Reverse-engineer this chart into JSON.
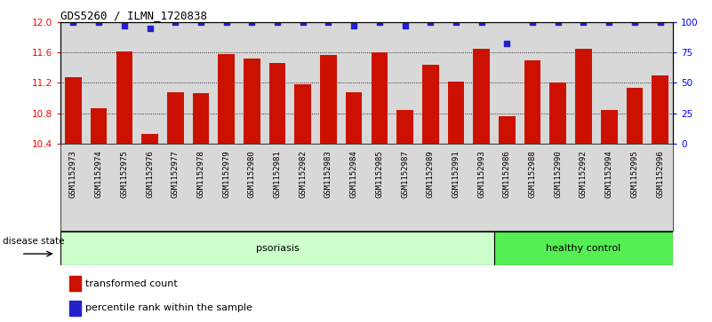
{
  "title": "GDS5260 / ILMN_1720838",
  "samples": [
    "GSM1152973",
    "GSM1152974",
    "GSM1152975",
    "GSM1152976",
    "GSM1152977",
    "GSM1152978",
    "GSM1152979",
    "GSM1152980",
    "GSM1152981",
    "GSM1152982",
    "GSM1152983",
    "GSM1152984",
    "GSM1152985",
    "GSM1152987",
    "GSM1152989",
    "GSM1152991",
    "GSM1152993",
    "GSM1152986",
    "GSM1152988",
    "GSM1152990",
    "GSM1152992",
    "GSM1152994",
    "GSM1152995",
    "GSM1152996"
  ],
  "bar_values": [
    11.28,
    10.86,
    11.62,
    10.52,
    11.08,
    11.06,
    11.58,
    11.52,
    11.47,
    11.18,
    11.57,
    11.08,
    11.61,
    10.84,
    11.44,
    11.22,
    11.65,
    10.76,
    11.5,
    11.2,
    11.65,
    10.84,
    11.14,
    11.3
  ],
  "percentile_values": [
    100,
    100,
    97,
    95,
    100,
    100,
    100,
    100,
    100,
    100,
    100,
    97,
    100,
    97,
    100,
    100,
    100,
    83,
    100,
    100,
    100,
    100,
    100,
    100
  ],
  "bar_color": "#cc1100",
  "dot_color": "#2222cc",
  "bg_color_plot": "#d8d8d8",
  "ylim_left": [
    10.4,
    12.0
  ],
  "ylim_right": [
    0,
    100
  ],
  "y_ticks_left": [
    10.4,
    10.8,
    11.2,
    11.6,
    12.0
  ],
  "y_ticks_right": [
    0,
    25,
    50,
    75,
    100
  ],
  "psoriasis_count": 17,
  "healthy_count": 7,
  "bg_color_psoriasis": "#ccffcc",
  "bg_color_healthy": "#55ee55",
  "legend_bar_label": "transformed count",
  "legend_dot_label": "percentile rank within the sample",
  "disease_state_label": "disease state",
  "psoriasis_label": "psoriasis",
  "healthy_label": "healthy control"
}
